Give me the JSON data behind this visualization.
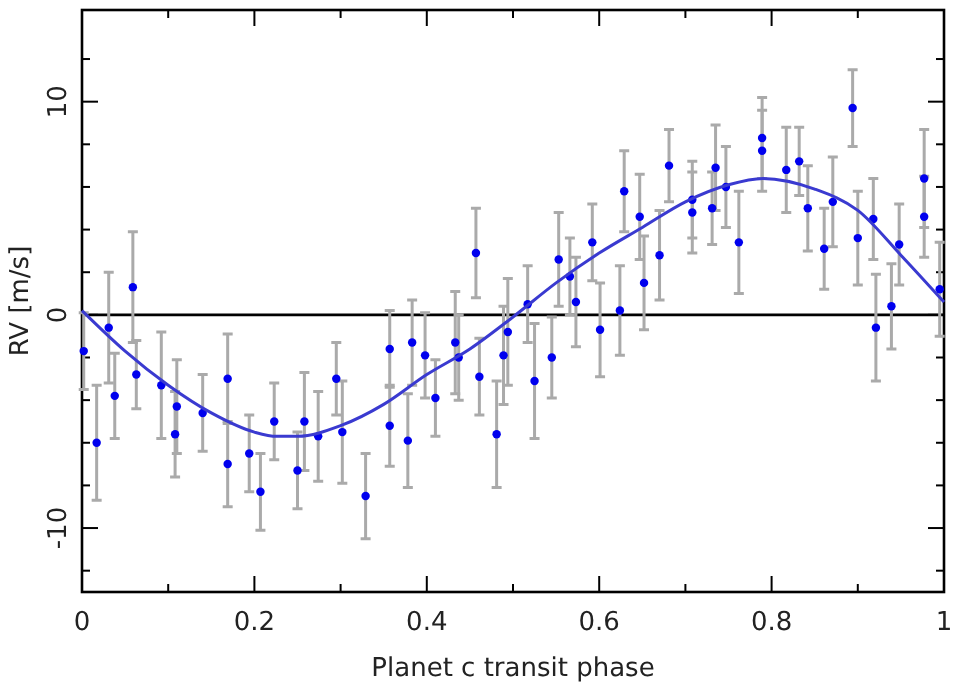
{
  "chart_data": {
    "type": "scatter",
    "xlabel": "Planet c transit phase",
    "ylabel": "RV [m/s]",
    "xlim": [
      0,
      1
    ],
    "ylim": [
      -13,
      14.3
    ],
    "xticks": [
      {
        "value": 0,
        "label": "0"
      },
      {
        "value": 0.1,
        "label": null
      },
      0.2,
      {
        "value": 0.3,
        "label": null
      },
      0.4,
      {
        "value": 0.5,
        "label": null
      },
      0.6,
      {
        "value": 0.7,
        "label": null
      },
      0.8,
      {
        "value": 0.9,
        "label": null
      },
      {
        "value": 1,
        "label": "1"
      }
    ],
    "yticks": [
      {
        "value": -12,
        "label": null
      },
      -10,
      {
        "value": -8,
        "label": null
      },
      {
        "value": -6,
        "label": null
      },
      {
        "value": -4,
        "label": null
      },
      {
        "value": -2,
        "label": null
      },
      0,
      {
        "value": 2,
        "label": null
      },
      {
        "value": 4,
        "label": null
      },
      {
        "value": 6,
        "label": null
      },
      {
        "value": 8,
        "label": null
      },
      10,
      {
        "value": 12,
        "label": null
      }
    ],
    "ref_lines": [
      {
        "axis": "y",
        "value": 0,
        "color": "#000000"
      }
    ],
    "marker": "circle",
    "grid": false,
    "series": [
      {
        "color": "#0000ee",
        "x": [
          0.002,
          0.017,
          0.031,
          0.038,
          0.059,
          0.063,
          0.092,
          0.108,
          0.11,
          0.14,
          0.169,
          0.169,
          0.194,
          0.207,
          0.223,
          0.25,
          0.258,
          0.274,
          0.295,
          0.302,
          0.329,
          0.357,
          0.357,
          0.378,
          0.383,
          0.398,
          0.41,
          0.433,
          0.437,
          0.457,
          0.461,
          0.481,
          0.489,
          0.494,
          0.517,
          0.525,
          0.545,
          0.553,
          0.566,
          0.573,
          0.592,
          0.601,
          0.624,
          0.629,
          0.647,
          0.652,
          0.67,
          0.681,
          0.708,
          0.708,
          0.731,
          0.735,
          0.747,
          0.762,
          0.789,
          0.789,
          0.817,
          0.832,
          0.842,
          0.861,
          0.871,
          0.894,
          0.9,
          0.918,
          0.921,
          0.939,
          0.948,
          0.977,
          0.977,
          0.995
        ],
        "values": [
          -1.7,
          -6.0,
          -0.6,
          -3.8,
          1.3,
          -2.8,
          -3.3,
          -5.6,
          -4.3,
          -4.6,
          -3.0,
          -7.0,
          -6.5,
          -8.3,
          -5.0,
          -7.3,
          -5.0,
          -5.7,
          -3.0,
          -5.5,
          -8.5,
          -1.6,
          -5.2,
          -5.9,
          -1.3,
          -1.9,
          -3.9,
          -1.3,
          -2.0,
          2.9,
          -2.9,
          -5.6,
          -1.9,
          -0.8,
          0.5,
          -3.1,
          -2.0,
          2.6,
          1.8,
          0.6,
          3.4,
          -0.7,
          0.2,
          5.8,
          4.6,
          1.5,
          2.8,
          7.0,
          5.4,
          4.8,
          5.0,
          6.9,
          6.0,
          3.4,
          8.3,
          7.7,
          6.8,
          7.2,
          5.0,
          3.1,
          5.3,
          9.7,
          3.6,
          4.5,
          -0.6,
          0.4,
          3.3,
          6.4,
          4.6,
          1.2
        ],
        "errors": [
          1.8,
          2.7,
          2.6,
          2.0,
          2.6,
          1.6,
          2.5,
          2.0,
          2.2,
          1.8,
          2.1,
          2.0,
          1.8,
          1.8,
          1.8,
          1.8,
          2.3,
          2.1,
          1.7,
          2.4,
          2.0,
          1.8,
          1.9,
          2.2,
          2.0,
          2.0,
          1.8,
          2.4,
          2.0,
          2.1,
          1.8,
          2.5,
          2.3,
          2.5,
          1.8,
          2.7,
          1.9,
          2.2,
          1.8,
          2.1,
          1.8,
          2.2,
          2.1,
          1.9,
          2.0,
          2.2,
          2.1,
          1.7,
          1.8,
          1.9,
          1.7,
          2.0,
          1.9,
          2.4,
          1.9,
          1.9,
          2.0,
          1.6,
          2.0,
          1.9,
          2.1,
          1.8,
          2.2,
          1.9,
          2.5,
          2.0,
          1.9,
          2.3,
          1.9,
          2.2
        ]
      },
      {
        "type": "line",
        "color": "#3a3ad0",
        "marker": "none",
        "x": [
          0,
          0.05,
          0.1,
          0.15,
          0.2,
          0.226,
          0.25,
          0.3,
          0.35,
          0.4,
          0.45,
          0.5,
          0.55,
          0.6,
          0.65,
          0.7,
          0.75,
          0.79,
          0.85,
          0.9,
          0.95,
          1
        ],
        "values": [
          0.2,
          -1.7,
          -3.3,
          -4.6,
          -5.5,
          -5.7,
          -5.7,
          -5.2,
          -4.2,
          -2.8,
          -1.6,
          -0.1,
          1.5,
          2.9,
          4.1,
          5.3,
          6.1,
          6.4,
          5.9,
          4.9,
          2.8,
          0.6
        ]
      }
    ]
  }
}
